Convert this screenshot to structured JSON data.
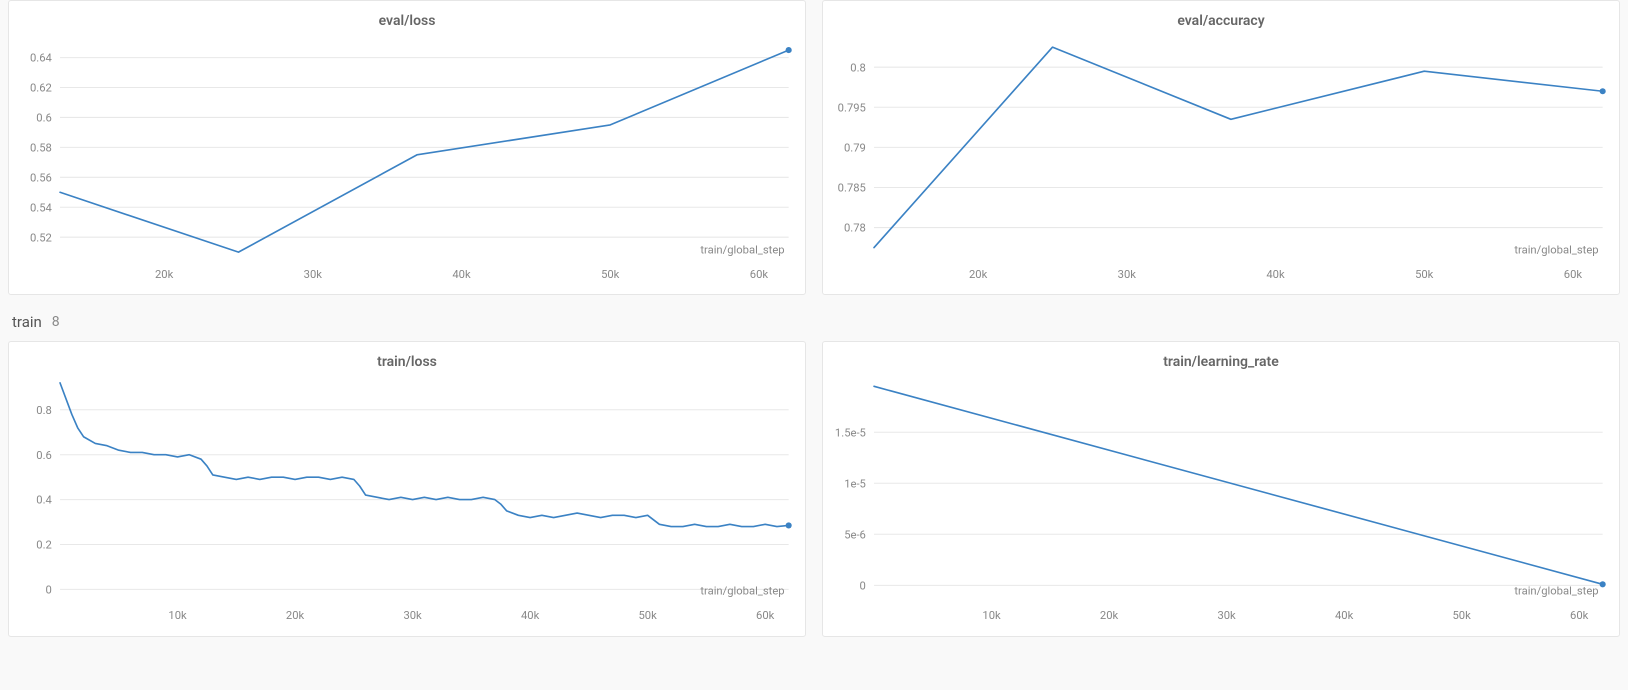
{
  "global": {
    "background_color": "#f9f9f9",
    "panel_background": "#ffffff",
    "panel_border": "#e6e6e6",
    "line_color": "#3b82c4",
    "grid_color": "#e8e8e8",
    "axis_text_color": "#888888",
    "title_color": "#666666",
    "endpoint_marker_color": "#3b82c4",
    "endpoint_marker_radius": 3,
    "line_width": 1.6,
    "tick_font_size": 11,
    "title_font_size": 14,
    "x_label": "train/global_step"
  },
  "section": {
    "name": "train",
    "count": "8"
  },
  "charts": {
    "eval_loss": {
      "title": "eval/loss",
      "type": "line",
      "x_ticks": [
        20000,
        30000,
        40000,
        50000,
        60000
      ],
      "x_tick_labels": [
        "20k",
        "30k",
        "40k",
        "50k",
        "60k"
      ],
      "y_ticks": [
        0.52,
        0.54,
        0.56,
        0.58,
        0.6,
        0.62,
        0.64
      ],
      "y_tick_labels": [
        "0.52",
        "0.54",
        "0.56",
        "0.58",
        "0.6",
        "0.62",
        "0.64"
      ],
      "xlim": [
        13000,
        62000
      ],
      "ylim": [
        0.505,
        0.655
      ],
      "x_label": "train/global_step",
      "data": [
        [
          13000,
          0.55
        ],
        [
          25000,
          0.51
        ],
        [
          37000,
          0.575
        ],
        [
          50000,
          0.595
        ],
        [
          62000,
          0.645
        ]
      ]
    },
    "eval_accuracy": {
      "title": "eval/accuracy",
      "type": "line",
      "x_ticks": [
        20000,
        30000,
        40000,
        50000,
        60000
      ],
      "x_tick_labels": [
        "20k",
        "30k",
        "40k",
        "50k",
        "60k"
      ],
      "y_ticks": [
        0.78,
        0.785,
        0.79,
        0.795,
        0.8
      ],
      "y_tick_labels": [
        "0.78",
        "0.785",
        "0.79",
        "0.795",
        "0.8"
      ],
      "xlim": [
        13000,
        62000
      ],
      "ylim": [
        0.776,
        0.804
      ],
      "x_label": "train/global_step",
      "data": [
        [
          13000,
          0.7775
        ],
        [
          25000,
          0.8025
        ],
        [
          37000,
          0.7935
        ],
        [
          50000,
          0.7995
        ],
        [
          62000,
          0.797
        ]
      ]
    },
    "train_loss": {
      "title": "train/loss",
      "type": "line",
      "x_ticks": [
        10000,
        20000,
        30000,
        40000,
        50000,
        60000
      ],
      "x_tick_labels": [
        "10k",
        "20k",
        "30k",
        "40k",
        "50k",
        "60k"
      ],
      "y_ticks": [
        0,
        0.2,
        0.4,
        0.6,
        0.8
      ],
      "y_tick_labels": [
        "0",
        "0.2",
        "0.4",
        "0.6",
        "0.8"
      ],
      "xlim": [
        0,
        62000
      ],
      "ylim": [
        -0.05,
        0.95
      ],
      "x_label": "train/global_step",
      "data": [
        [
          0,
          0.92
        ],
        [
          500,
          0.85
        ],
        [
          1000,
          0.78
        ],
        [
          1500,
          0.72
        ],
        [
          2000,
          0.68
        ],
        [
          3000,
          0.65
        ],
        [
          4000,
          0.64
        ],
        [
          5000,
          0.62
        ],
        [
          6000,
          0.61
        ],
        [
          7000,
          0.61
        ],
        [
          8000,
          0.6
        ],
        [
          9000,
          0.6
        ],
        [
          10000,
          0.59
        ],
        [
          11000,
          0.6
        ],
        [
          12000,
          0.58
        ],
        [
          12500,
          0.55
        ],
        [
          13000,
          0.51
        ],
        [
          14000,
          0.5
        ],
        [
          15000,
          0.49
        ],
        [
          16000,
          0.5
        ],
        [
          17000,
          0.49
        ],
        [
          18000,
          0.5
        ],
        [
          19000,
          0.5
        ],
        [
          20000,
          0.49
        ],
        [
          21000,
          0.5
        ],
        [
          22000,
          0.5
        ],
        [
          23000,
          0.49
        ],
        [
          24000,
          0.5
        ],
        [
          25000,
          0.49
        ],
        [
          25500,
          0.46
        ],
        [
          26000,
          0.42
        ],
        [
          27000,
          0.41
        ],
        [
          28000,
          0.4
        ],
        [
          29000,
          0.41
        ],
        [
          30000,
          0.4
        ],
        [
          31000,
          0.41
        ],
        [
          32000,
          0.4
        ],
        [
          33000,
          0.41
        ],
        [
          34000,
          0.4
        ],
        [
          35000,
          0.4
        ],
        [
          36000,
          0.41
        ],
        [
          37000,
          0.4
        ],
        [
          37500,
          0.38
        ],
        [
          38000,
          0.35
        ],
        [
          39000,
          0.33
        ],
        [
          40000,
          0.32
        ],
        [
          41000,
          0.33
        ],
        [
          42000,
          0.32
        ],
        [
          43000,
          0.33
        ],
        [
          44000,
          0.34
        ],
        [
          45000,
          0.33
        ],
        [
          46000,
          0.32
        ],
        [
          47000,
          0.33
        ],
        [
          48000,
          0.33
        ],
        [
          49000,
          0.32
        ],
        [
          50000,
          0.33
        ],
        [
          50500,
          0.31
        ],
        [
          51000,
          0.29
        ],
        [
          52000,
          0.28
        ],
        [
          53000,
          0.28
        ],
        [
          54000,
          0.29
        ],
        [
          55000,
          0.28
        ],
        [
          56000,
          0.28
        ],
        [
          57000,
          0.29
        ],
        [
          58000,
          0.28
        ],
        [
          59000,
          0.28
        ],
        [
          60000,
          0.29
        ],
        [
          61000,
          0.28
        ],
        [
          62000,
          0.285
        ]
      ]
    },
    "train_lr": {
      "title": "train/learning_rate",
      "type": "line",
      "x_ticks": [
        10000,
        20000,
        30000,
        40000,
        50000,
        60000
      ],
      "x_tick_labels": [
        "10k",
        "20k",
        "30k",
        "40k",
        "50k",
        "60k"
      ],
      "y_ticks": [
        0,
        5e-06,
        1e-05,
        1.5e-05
      ],
      "y_tick_labels": [
        "0",
        "5e-6",
        "1e-5",
        "1.5e-5"
      ],
      "xlim": [
        0,
        62000
      ],
      "ylim": [
        -1.5e-06,
        2.05e-05
      ],
      "x_label": "train/global_step",
      "data": [
        [
          0,
          1.95e-05
        ],
        [
          62000,
          1e-07
        ]
      ]
    }
  }
}
